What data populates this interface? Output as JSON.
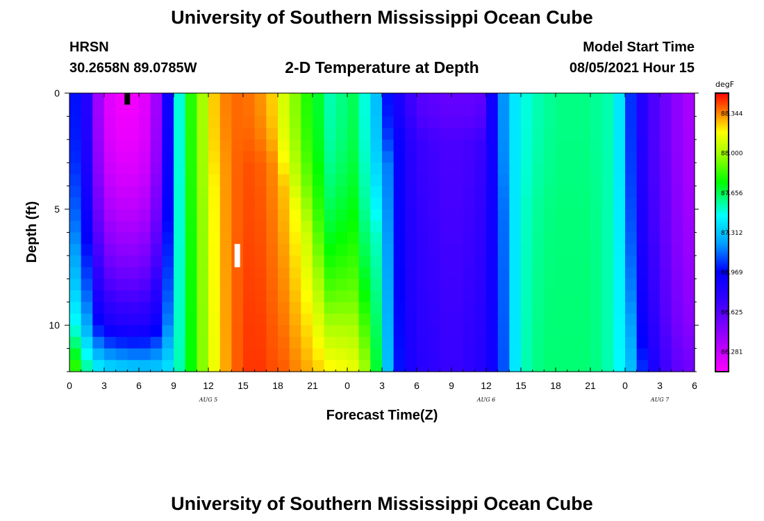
{
  "header": {
    "title_top": "University of Southern Mississippi Ocean Cube",
    "title_bottom": "University of Southern Mississippi Ocean Cube",
    "station": "HRSN",
    "coords": "30.2658N  89.0785W",
    "plot_title": "2-D Temperature at Depth",
    "start_label": "Model Start Time",
    "start_value": "08/05/2021 Hour 15"
  },
  "chart_data": {
    "type": "heatmap",
    "title": "2-D Temperature at Depth",
    "xlabel": "Forecast Time(Z)",
    "ylabel": "Depth (ft)",
    "x_hours": {
      "start": 0,
      "end": 54,
      "step": 1
    },
    "y_depth": {
      "min": 0,
      "max": 12,
      "step": 1
    },
    "x_ticks": [
      "0",
      "3",
      "6",
      "9",
      "12",
      "15",
      "18",
      "21",
      "0",
      "3",
      "6",
      "9",
      "12",
      "15",
      "18",
      "21",
      "0",
      "3",
      "6"
    ],
    "y_ticks": [
      "0",
      "5",
      "10"
    ],
    "date_labels": [
      {
        "text": "AUG 5",
        "hour": 12
      },
      {
        "text": "AUG 6",
        "hour": 36
      },
      {
        "text": "AUG 7",
        "hour": 51
      }
    ],
    "colorbar": {
      "unit": "degF",
      "vmin": 86.11,
      "vmax": 88.52,
      "labels": [
        "88.344",
        "88.000",
        "87.656",
        "87.312",
        "86.969",
        "86.625",
        "86.281"
      ],
      "label_values": [
        88.344,
        88.0,
        87.656,
        87.312,
        86.969,
        86.625,
        86.281
      ]
    },
    "markers": [
      {
        "color": "#000000",
        "hour": 5,
        "depth_top": 0,
        "depth_bottom": 0.5
      },
      {
        "color": "#ffffff",
        "hour": 14.5,
        "depth_top": 6.5,
        "depth_bottom": 7.5
      }
    ],
    "column_profiles": {
      "hours": [
        0,
        1,
        2,
        3,
        4,
        5,
        6,
        7,
        8,
        9,
        10,
        11,
        12,
        13,
        14,
        15,
        16,
        17,
        18,
        19,
        20,
        21,
        22,
        23,
        24,
        25,
        26,
        27,
        28,
        29,
        30,
        31,
        32,
        33,
        34,
        35,
        36,
        37,
        38,
        39,
        40,
        41,
        42,
        43,
        44,
        45,
        46,
        47,
        48,
        49,
        50,
        51,
        52,
        53,
        54
      ],
      "surface": [
        87.0,
        86.8,
        86.4,
        86.2,
        86.15,
        86.15,
        86.2,
        86.4,
        86.9,
        87.5,
        87.8,
        88.0,
        88.25,
        88.35,
        88.38,
        88.37,
        88.33,
        88.25,
        88.1,
        87.95,
        87.8,
        87.7,
        87.55,
        87.6,
        87.65,
        87.5,
        87.3,
        87.0,
        86.85,
        86.7,
        86.62,
        86.6,
        86.58,
        86.58,
        86.58,
        86.6,
        86.9,
        87.2,
        87.4,
        87.5,
        87.55,
        87.58,
        87.6,
        87.6,
        87.6,
        87.58,
        87.55,
        87.4,
        87.05,
        86.8,
        86.65,
        86.55,
        86.45,
        86.38,
        86.35
      ],
      "bottom": [
        87.85,
        87.6,
        87.45,
        87.4,
        87.38,
        87.36,
        87.35,
        87.35,
        87.4,
        87.55,
        87.75,
        87.95,
        88.15,
        88.3,
        88.4,
        88.45,
        88.45,
        88.42,
        88.4,
        88.35,
        88.3,
        88.25,
        88.2,
        88.18,
        88.15,
        88.0,
        87.7,
        87.3,
        87.0,
        86.85,
        86.78,
        86.75,
        86.72,
        86.72,
        86.75,
        86.8,
        86.9,
        87.1,
        87.4,
        87.55,
        87.6,
        87.62,
        87.62,
        87.62,
        87.62,
        87.6,
        87.55,
        87.45,
        87.3,
        87.05,
        86.85,
        86.7,
        86.6,
        86.55,
        86.52
      ],
      "mix_depth": [
        10,
        10,
        10,
        10,
        10,
        10,
        10,
        10,
        10,
        10,
        6,
        5,
        4,
        3,
        3,
        3,
        3,
        3,
        4,
        5,
        6,
        8,
        9,
        9,
        9,
        9,
        6,
        3,
        2,
        2,
        2,
        2,
        2,
        2,
        2,
        2,
        4,
        5,
        5,
        5,
        5,
        5,
        5,
        5,
        5,
        5,
        6,
        7,
        9,
        10,
        10,
        10,
        10,
        10,
        10
      ]
    }
  }
}
